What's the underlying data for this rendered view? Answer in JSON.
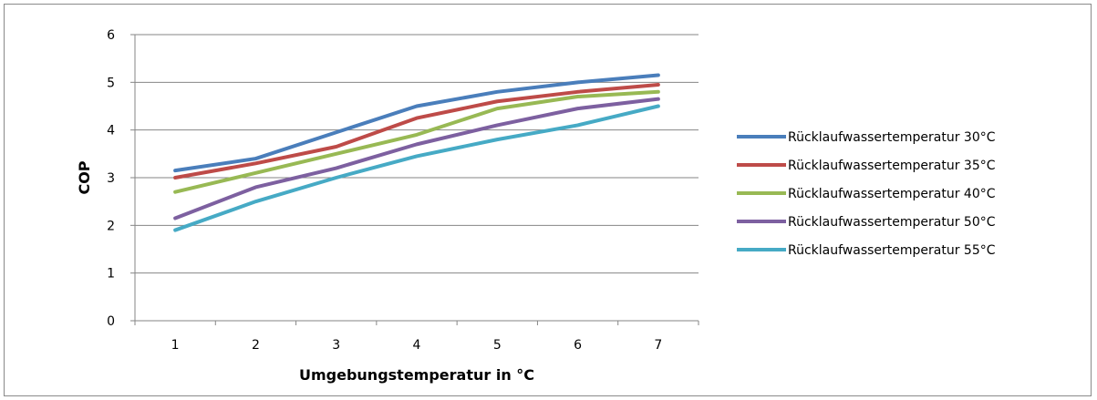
{
  "chart_data": {
    "type": "line",
    "x": [
      1,
      2,
      3,
      4,
      5,
      6,
      7
    ],
    "xlabel": "Umgebungstemperatur in °C",
    "ylabel": "COP",
    "ylim": [
      0,
      6
    ],
    "yticks": [
      "0",
      "1",
      "2",
      "3",
      "4",
      "5",
      "6"
    ],
    "xticks": [
      "1",
      "2",
      "3",
      "4",
      "5",
      "6",
      "7"
    ],
    "grid": "horizontal",
    "legend_position": "right",
    "series": [
      {
        "name": "Rücklaufwassertemperatur 30°C",
        "color": "#4a7ebb",
        "values": [
          3.15,
          3.4,
          3.95,
          4.5,
          4.8,
          5.0,
          5.15
        ]
      },
      {
        "name": "Rücklaufwassertemperatur 35°C",
        "color": "#be4b48",
        "values": [
          3.0,
          3.3,
          3.65,
          4.25,
          4.6,
          4.8,
          4.95
        ]
      },
      {
        "name": "Rücklaufwassertemperatur 40°C",
        "color": "#98b954",
        "values": [
          2.7,
          3.1,
          3.5,
          3.9,
          4.45,
          4.7,
          4.8
        ]
      },
      {
        "name": "Rücklaufwassertemperatur 50°C",
        "color": "#7d60a0",
        "values": [
          2.15,
          2.8,
          3.2,
          3.7,
          4.1,
          4.45,
          4.65
        ]
      },
      {
        "name": "Rücklaufwassertemperatur 55°C",
        "color": "#46aac5",
        "values": [
          1.9,
          2.5,
          3.0,
          3.45,
          3.8,
          4.1,
          4.5
        ]
      }
    ]
  }
}
